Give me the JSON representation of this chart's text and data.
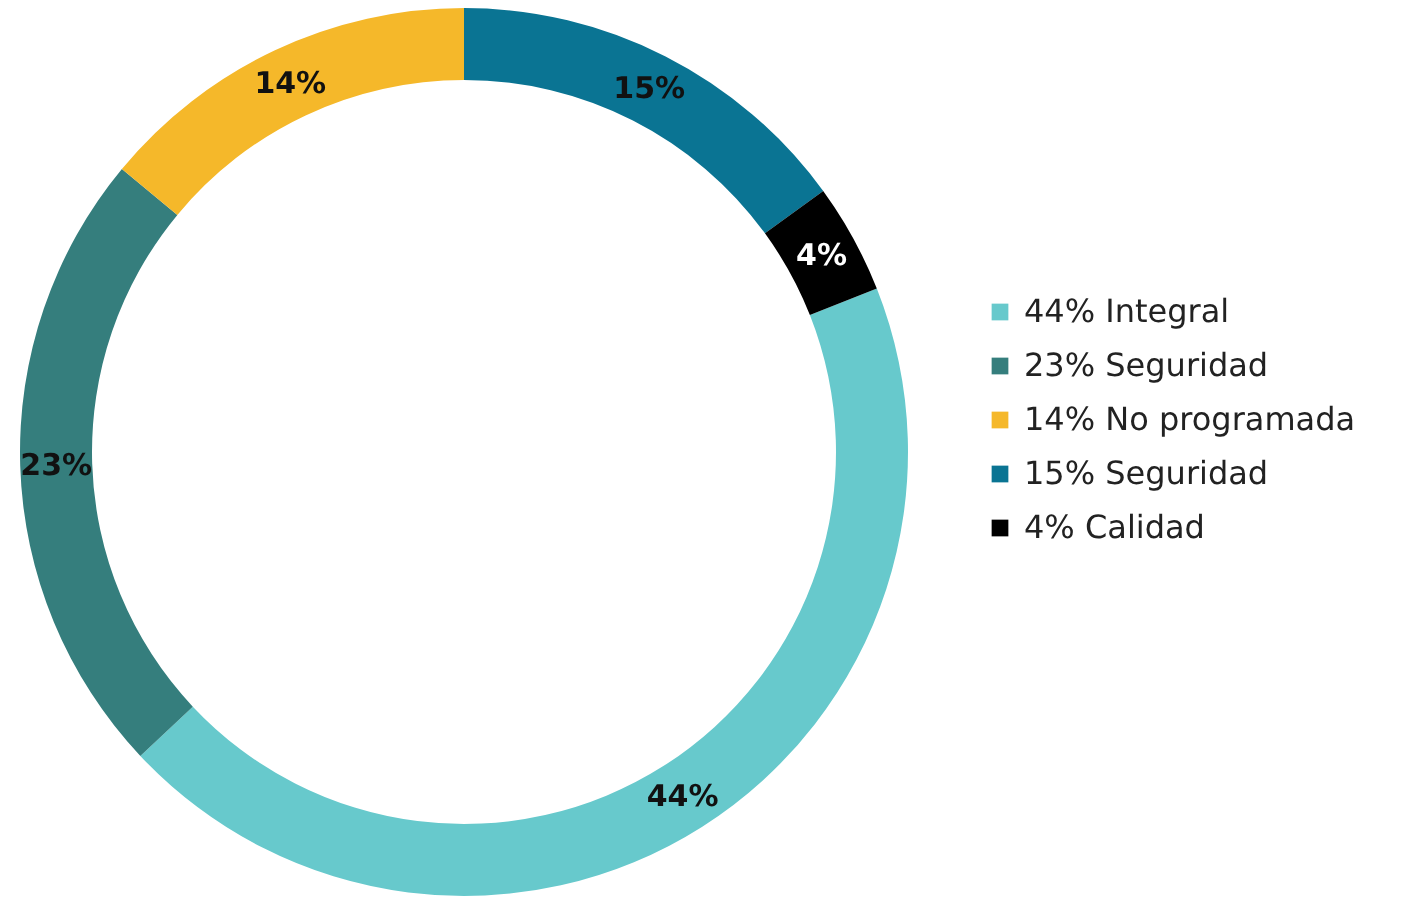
{
  "chart_data": {
    "type": "donut",
    "categories": [
      "Integral",
      "Seguridad",
      "No programada",
      "Seguridad",
      "Calidad"
    ],
    "values": [
      44,
      23,
      14,
      15,
      4
    ],
    "value_labels": [
      "44%",
      "23%",
      "14%",
      "15%",
      "4%"
    ],
    "colors": [
      "#67c9cc",
      "#357e7d",
      "#f5b82a",
      "#0a7493",
      "#000000"
    ],
    "legend": "right"
  }
}
